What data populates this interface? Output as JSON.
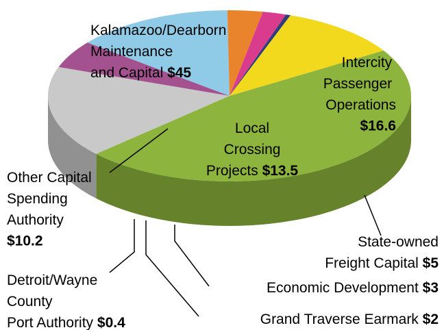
{
  "chart_data": {
    "type": "pie3d",
    "categories": [
      "Kalamazoo/Dearborn Maintenance and Capital",
      "Intercity Passenger Operations",
      "State-owned Freight Capital",
      "Local Crossing Projects",
      "Economic Development",
      "Grand Traverse Earmark",
      "Detroit/Wayne County Port Authority",
      "Other Capital Spending Authority"
    ],
    "values": [
      45,
      16.6,
      5,
      13.5,
      3,
      2,
      0.4,
      10.2
    ],
    "value_labels": [
      "$45",
      "$16.6",
      "$5",
      "$13.5",
      "$3",
      "$2",
      "$0.4",
      "$10.2"
    ],
    "colors": [
      "#8db43c",
      "#c9c9c9",
      "#a3518f",
      "#8fcbe6",
      "#e9832c",
      "#d93b8d",
      "#2f3d78",
      "#f3d91e"
    ]
  }
}
